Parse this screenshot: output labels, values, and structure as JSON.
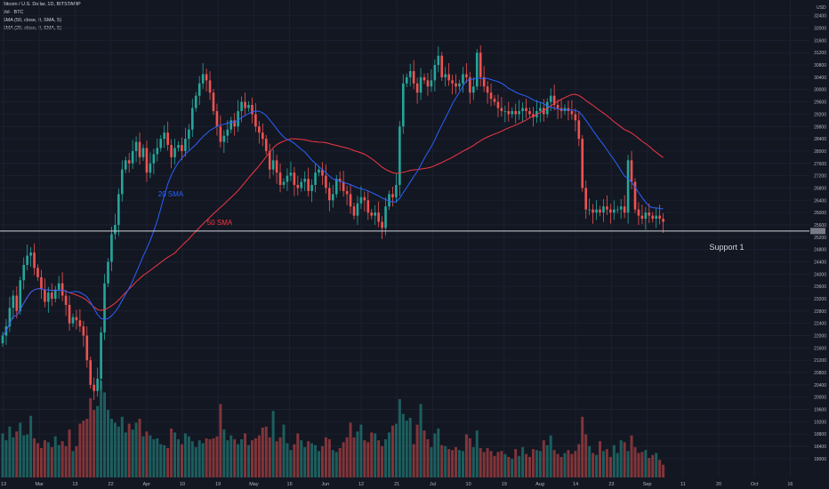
{
  "header": {
    "title": "Bitcoin / U.S. Dollar, 1D, BITSTAMP",
    "vol": "Vol · BTC",
    "sma50": "SMA (50, close, 0, SMA, 5)",
    "sma20": "SMA (20, close, 0, SMA, 5)"
  },
  "currency": "USD",
  "colors": {
    "background": "#131722",
    "up": "#26a69a",
    "down": "#ef5350",
    "sma20": "#2962ff",
    "sma50": "#f23645",
    "support": "#d1d4dc"
  },
  "chart_data": {
    "type": "candlestick",
    "y_ticks": [
      32400,
      32000,
      31600,
      31200,
      30800,
      30400,
      30000,
      29600,
      29200,
      28800,
      28400,
      28000,
      27600,
      27200,
      26800,
      26400,
      26000,
      25600,
      25200,
      24800,
      24400,
      24000,
      23600,
      23200,
      22800,
      22400,
      22000,
      21600,
      21200,
      20800,
      20400,
      20000,
      19600,
      19200,
      18800,
      18400,
      18000
    ],
    "x_ticks": [
      "13",
      "Mar",
      "13",
      "22",
      "Apr",
      "10",
      "19",
      "May",
      "15",
      "Jun",
      "12",
      "21",
      "Jul",
      "10",
      "19",
      "Aug",
      "14",
      "23",
      "Sep",
      "11",
      "20",
      "Oct",
      "16"
    ],
    "ylim": [
      17880,
      32450
    ],
    "support_level": 25400,
    "support_label": "Support 1",
    "annotations": [
      "20 SMA",
      "50 SMA"
    ],
    "closes": [
      22000,
      22300,
      22900,
      23300,
      22800,
      23800,
      24300,
      24600,
      24700,
      24200,
      23900,
      23500,
      23100,
      23400,
      23200,
      23500,
      23700,
      23300,
      23000,
      22400,
      22600,
      22500,
      22300,
      22000,
      21200,
      20400,
      20200,
      20600,
      22100,
      23700,
      24400,
      25300,
      25600,
      26600,
      27400,
      27700,
      27600,
      28000,
      28300,
      27800,
      28100,
      27300,
      27600,
      27900,
      28100,
      28400,
      28600,
      28200,
      27800,
      28100,
      28200,
      28000,
      28400,
      28700,
      29400,
      29800,
      30200,
      30500,
      30300,
      29900,
      29300,
      28800,
      28300,
      28500,
      28700,
      29000,
      28800,
      29300,
      29600,
      29400,
      29500,
      29200,
      28800,
      28600,
      28400,
      28000,
      27400,
      27700,
      27300,
      26900,
      27000,
      27200,
      27300,
      26900,
      26800,
      27000,
      27100,
      26700,
      26900,
      27300,
      27400,
      27200,
      26800,
      26400,
      26600,
      27100,
      27000,
      26700,
      26600,
      26200,
      25900,
      26300,
      26500,
      26400,
      26000,
      25900,
      26000,
      25700,
      25500,
      26200,
      26600,
      26500,
      26900,
      28800,
      30200,
      30400,
      30600,
      30200,
      29900,
      30400,
      30300,
      30100,
      30300,
      30800,
      31100,
      30400,
      30500,
      30300,
      30200,
      30100,
      30200,
      30500,
      30400,
      29900,
      30100,
      31200,
      30400,
      30100,
      29900,
      29700,
      29600,
      29400,
      29300,
      29300,
      29200,
      29300,
      29200,
      29300,
      29400,
      29300,
      29200,
      29100,
      29300,
      29400,
      29200,
      29600,
      29800,
      29500,
      29400,
      29300,
      29400,
      29300,
      29200,
      29000,
      28400,
      26800,
      26100,
      26100,
      26000,
      26100,
      26000,
      26200,
      26100,
      26000,
      26100,
      26100,
      26200,
      26000,
      27700,
      27000,
      26100,
      25900,
      25800,
      26000,
      25900,
      25800,
      25900,
      25800,
      25700
    ],
    "volumes": [
      0.45,
      0.38,
      0.52,
      0.41,
      0.47,
      0.56,
      0.43,
      0.44,
      0.63,
      0.4,
      0.35,
      0.3,
      0.38,
      0.36,
      0.31,
      0.42,
      0.33,
      0.37,
      0.32,
      0.49,
      0.27,
      0.32,
      0.55,
      0.58,
      0.6,
      0.81,
      0.69,
      0.73,
      0.99,
      0.87,
      0.69,
      0.6,
      0.56,
      0.52,
      0.62,
      0.46,
      0.55,
      0.49,
      0.56,
      0.6,
      0.42,
      0.47,
      0.43,
      0.39,
      0.4,
      0.34,
      0.33,
      0.3,
      0.5,
      0.46,
      0.39,
      0.34,
      0.45,
      0.42,
      0.37,
      0.31,
      0.38,
      0.35,
      0.4,
      0.39,
      0.4,
      0.42,
      0.75,
      0.49,
      0.38,
      0.43,
      0.39,
      0.34,
      0.39,
      0.45,
      0.33,
      0.38,
      0.4,
      0.43,
      0.51,
      0.52,
      0.41,
      0.68,
      0.37,
      0.41,
      0.54,
      0.35,
      0.28,
      0.34,
      0.45,
      0.38,
      0.31,
      0.37,
      0.35,
      0.33,
      0.27,
      0.32,
      0.41,
      0.39,
      0.28,
      0.26,
      0.3,
      0.36,
      0.41,
      0.56,
      0.41,
      0.47,
      0.54,
      0.38,
      0.36,
      0.46,
      0.45,
      0.38,
      0.32,
      0.39,
      0.46,
      0.53,
      0.55,
      0.8,
      0.65,
      0.58,
      0.61,
      0.34,
      0.54,
      0.75,
      0.48,
      0.39,
      0.31,
      0.45,
      0.5,
      0.33,
      0.32,
      0.29,
      0.28,
      0.31,
      0.28,
      0.27,
      0.44,
      0.4,
      0.31,
      0.48,
      0.3,
      0.26,
      0.3,
      0.27,
      0.22,
      0.26,
      0.27,
      0.24,
      0.21,
      0.19,
      0.29,
      0.22,
      0.31,
      0.24,
      0.21,
      0.29,
      0.28,
      0.27,
      0.38,
      0.33,
      0.43,
      0.28,
      0.24,
      0.21,
      0.25,
      0.28,
      0.24,
      0.27,
      0.34,
      0.62,
      0.44,
      0.32,
      0.25,
      0.23,
      0.37,
      0.27,
      0.29,
      0.21,
      0.33,
      0.25,
      0.38,
      0.36,
      0.27,
      0.43,
      0.31,
      0.25,
      0.26,
      0.28,
      0.2,
      0.23,
      0.25,
      0.18,
      0.13
    ]
  }
}
